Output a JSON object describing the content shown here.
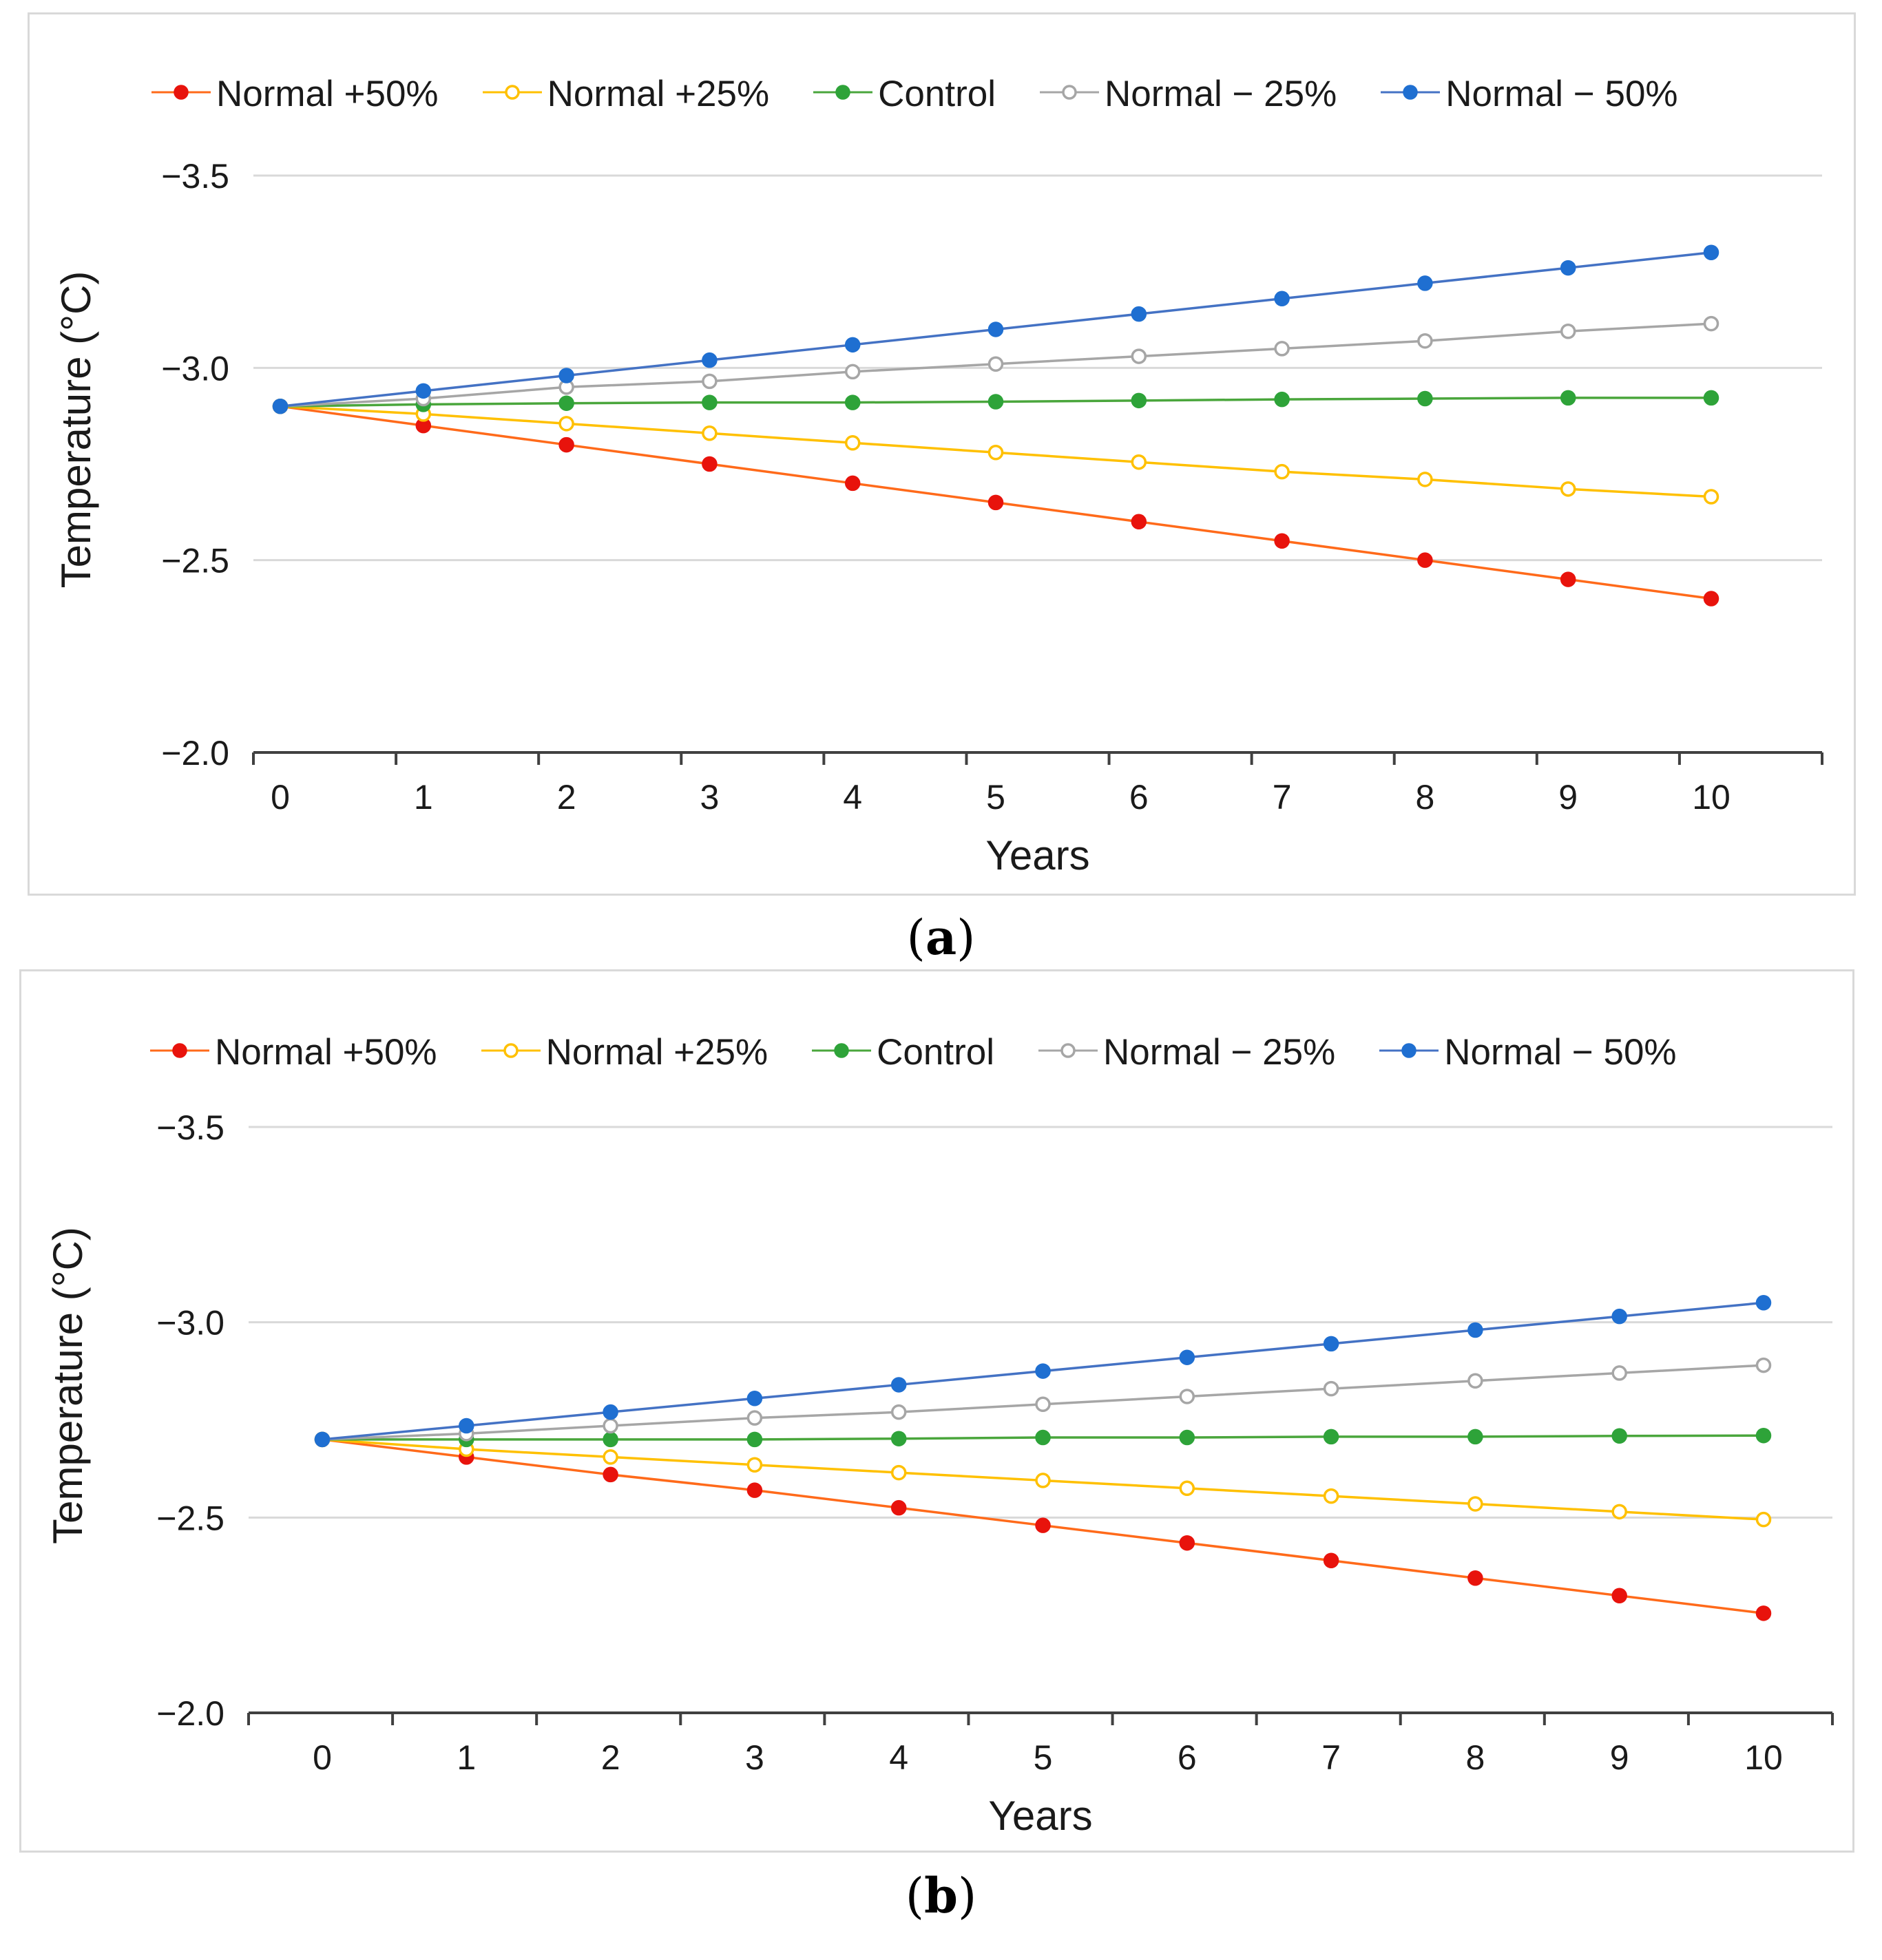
{
  "chart_data": [
    {
      "panel": "a",
      "type": "line",
      "title": "",
      "xlabel": "Years",
      "ylabel": "Temperature (°C)",
      "x": [
        0,
        1,
        2,
        3,
        4,
        5,
        6,
        7,
        8,
        9,
        10
      ],
      "ylim": [
        -2.0,
        -3.5
      ],
      "yticks": [
        "−3.5",
        "−3.0",
        "−2.5",
        "−2.0"
      ],
      "ytick_values": [
        -3.5,
        -3.0,
        -2.5,
        -2.0
      ],
      "legend_position": "top",
      "series": [
        {
          "name": "Normal +50%",
          "color": "#ff6a1a",
          "marker": "#e8130c",
          "hollow": false,
          "values": [
            -2.9,
            -2.85,
            -2.8,
            -2.75,
            -2.7,
            -2.65,
            -2.6,
            -2.55,
            -2.5,
            -2.45,
            -2.4
          ]
        },
        {
          "name": "Normal +25%",
          "color": "#ffc000",
          "marker": "#ffc000",
          "hollow": true,
          "values": [
            -2.9,
            -2.88,
            -2.855,
            -2.83,
            -2.805,
            -2.78,
            -2.755,
            -2.73,
            -2.71,
            -2.685,
            -2.665
          ]
        },
        {
          "name": "Control",
          "color": "#4aa63c",
          "marker": "#2ea339",
          "hollow": false,
          "values": [
            -2.9,
            -2.905,
            -2.908,
            -2.91,
            -2.91,
            -2.912,
            -2.915,
            -2.918,
            -2.92,
            -2.922,
            -2.922
          ]
        },
        {
          "name": "Normal − 25%",
          "color": "#a6a6a6",
          "marker": "#a6a6a6",
          "hollow": true,
          "values": [
            -2.9,
            -2.92,
            -2.95,
            -2.965,
            -2.99,
            -3.01,
            -3.03,
            -3.05,
            -3.07,
            -3.095,
            -3.115
          ]
        },
        {
          "name": "Normal − 50%",
          "color": "#4472c4",
          "marker": "#1f6fd1",
          "hollow": false,
          "values": [
            -2.9,
            -2.94,
            -2.98,
            -3.02,
            -3.06,
            -3.1,
            -3.14,
            -3.18,
            -3.22,
            -3.26,
            -3.3
          ]
        }
      ]
    },
    {
      "panel": "b",
      "type": "line",
      "title": "",
      "xlabel": "Years",
      "ylabel": "Temperature (°C)",
      "x": [
        0,
        1,
        2,
        3,
        4,
        5,
        6,
        7,
        8,
        9,
        10
      ],
      "ylim": [
        -2.0,
        -3.5
      ],
      "yticks": [
        "−3.5",
        "−3.0",
        "−2.5",
        "−2.0"
      ],
      "ytick_values": [
        -3.5,
        -3.0,
        -2.5,
        -2.0
      ],
      "legend_position": "top",
      "series": [
        {
          "name": "Normal +50%",
          "color": "#ff6a1a",
          "marker": "#e8130c",
          "hollow": false,
          "values": [
            -2.7,
            -2.655,
            -2.61,
            -2.57,
            -2.525,
            -2.48,
            -2.435,
            -2.39,
            -2.345,
            -2.3,
            -2.255
          ]
        },
        {
          "name": "Normal +25%",
          "color": "#ffc000",
          "marker": "#ffc000",
          "hollow": true,
          "values": [
            -2.7,
            -2.675,
            -2.655,
            -2.635,
            -2.615,
            -2.595,
            -2.575,
            -2.555,
            -2.535,
            -2.515,
            -2.495
          ]
        },
        {
          "name": "Control",
          "color": "#4aa63c",
          "marker": "#2ea339",
          "hollow": false,
          "values": [
            -2.7,
            -2.7,
            -2.7,
            -2.7,
            -2.702,
            -2.705,
            -2.705,
            -2.707,
            -2.707,
            -2.709,
            -2.71
          ]
        },
        {
          "name": "Normal − 25%",
          "color": "#a6a6a6",
          "marker": "#a6a6a6",
          "hollow": true,
          "values": [
            -2.7,
            -2.715,
            -2.735,
            -2.755,
            -2.77,
            -2.79,
            -2.81,
            -2.83,
            -2.85,
            -2.87,
            -2.89
          ]
        },
        {
          "name": "Normal − 50%",
          "color": "#4472c4",
          "marker": "#1f6fd1",
          "hollow": false,
          "values": [
            -2.7,
            -2.735,
            -2.77,
            -2.805,
            -2.84,
            -2.875,
            -2.91,
            -2.945,
            -2.98,
            -3.015,
            -3.05
          ]
        }
      ]
    }
  ],
  "captions": {
    "a": "a",
    "b": "b"
  }
}
